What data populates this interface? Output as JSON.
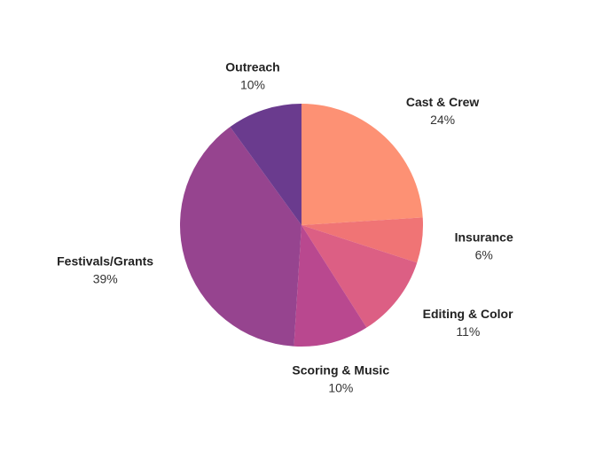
{
  "chart_data": {
    "type": "pie",
    "title": "",
    "slices": [
      {
        "label": "Cast & Crew",
        "value": 24,
        "value_label": "24%",
        "color": "#FD9174"
      },
      {
        "label": "Insurance",
        "value": 6,
        "value_label": "6%",
        "color": "#F07475"
      },
      {
        "label": "Editing & Color",
        "value": 11,
        "value_label": "11%",
        "color": "#DC5F84"
      },
      {
        "label": "Scoring & Music",
        "value": 10,
        "value_label": "10%",
        "color": "#B9488F"
      },
      {
        "label": "Festivals/Grants",
        "value": 39,
        "value_label": "39%",
        "color": "#96448F"
      },
      {
        "label": "Outreach",
        "value": 10,
        "value_label": "10%",
        "color": "#6A3B8E"
      }
    ],
    "start_angle": "12 o'clock",
    "direction": "clockwise",
    "legend": "none"
  }
}
